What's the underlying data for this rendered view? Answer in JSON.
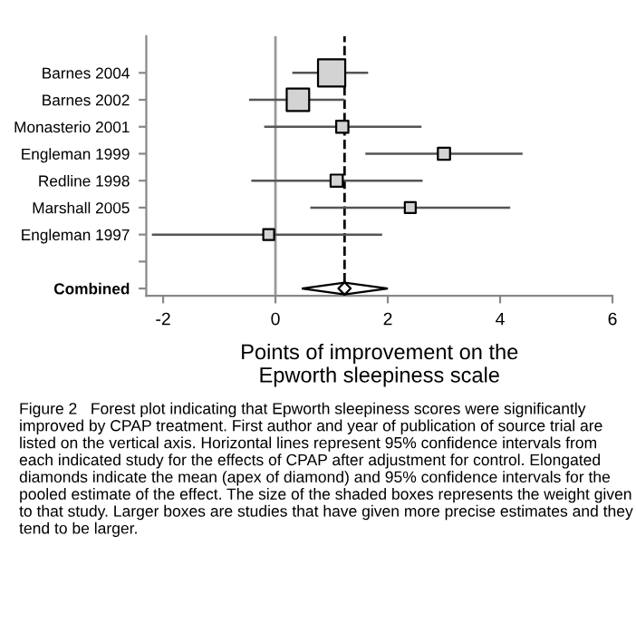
{
  "chart_data": {
    "type": "bubble",
    "orientation": "horizontal",
    "categories": [
      "Barnes 2004",
      "Barnes 2002",
      "Monasterio 2001",
      "Engleman 1999",
      "Redline 1998",
      "Marshall 2005",
      "Engleman 1997",
      null,
      "Combined"
    ],
    "series": [
      {
        "marker": "square",
        "color": "#d3d3d3",
        "values": [
          1.0,
          0.4,
          1.19,
          3.0,
          1.09,
          2.4,
          -0.12,
          null,
          null
        ],
        "sizes": [
          1,
          0.68,
          0.2,
          0.2,
          0.2,
          0.16,
          0.16,
          null,
          null
        ],
        "errors": [
          [
            0.3,
            1.65
          ],
          [
            -0.47,
            1.23
          ],
          [
            -0.2,
            2.6
          ],
          [
            1.6,
            4.4
          ],
          [
            -0.43,
            2.62
          ],
          [
            0.62,
            4.18
          ],
          [
            -2.2,
            1.9
          ],
          null,
          null
        ]
      },
      {
        "type": "scatter",
        "marker": "diamond",
        "color": "#ffffff",
        "values": [
          null,
          null,
          null,
          null,
          null,
          null,
          null,
          null,
          1.23
        ],
        "errors": [
          null,
          null,
          null,
          null,
          null,
          null,
          null,
          null,
          [
            0.47,
            2.0
          ]
        ]
      }
    ],
    "xlim": [
      -2.3,
      6
    ],
    "xticks": [
      -2,
      0,
      2,
      4,
      6
    ],
    "xlabel": "Points of improvement on the\nEpworth sleepiness scale",
    "ref_lines": [
      {
        "axis": "x",
        "value": 0,
        "color": "#999999",
        "line_style": "solid"
      },
      {
        "axis": "x",
        "value": 1.23,
        "color": "#000000",
        "line_style": "dashed"
      }
    ],
    "grid": false,
    "legend": false,
    "annotations": [
      "Figure 2   Forest plot indicating that Epworth sleepiness scores were significantly improved by CPAP treatment. First author and year of publication of source trial are listed on the vertical axis. Horizontal lines represent 95% confidence intervals from each indicated study for the effects of CPAP after adjustment for control. Elongated diamonds indicate the mean (apex of diamond) and 95% confidence intervals for the pooled estimate of the effect. The size of the shaded boxes represents the weight given to that study. Larger boxes are studies that have given more precise estimates and they tend to be larger."
    ]
  }
}
